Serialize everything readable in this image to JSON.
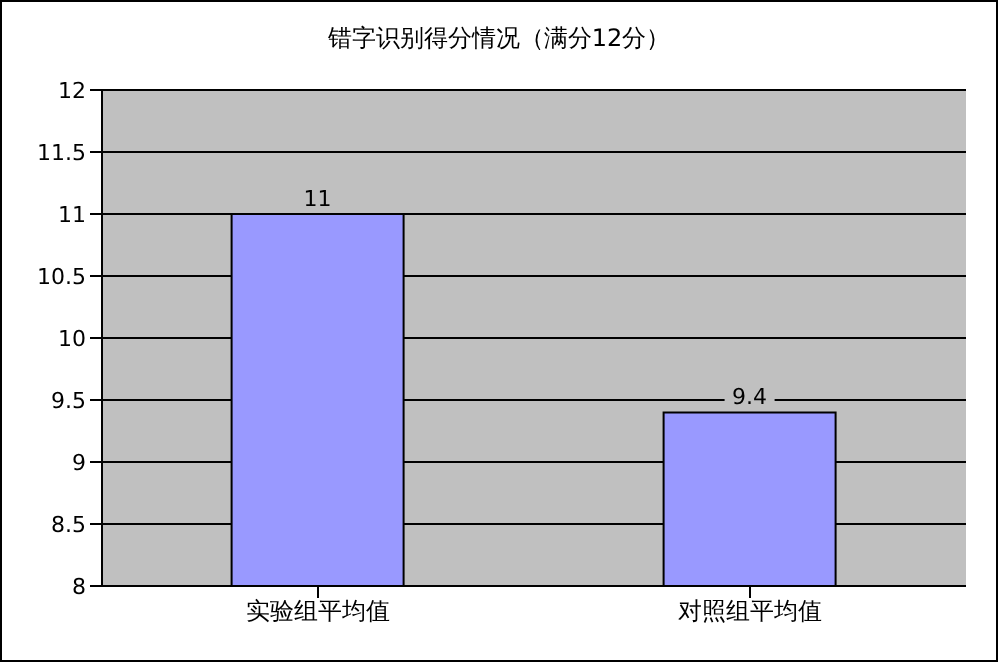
{
  "chart_data": {
    "type": "bar",
    "title": "错字识别得分情况（满分12分）",
    "categories": [
      "实验组平均值",
      "对照组平均值"
    ],
    "values": [
      11,
      9.4
    ],
    "color": "#9999ff",
    "ylim": [
      8,
      12
    ],
    "yticks": [
      8,
      8.5,
      9,
      9.5,
      10,
      10.5,
      11,
      11.5,
      12
    ],
    "grid": "y",
    "data_labels": true
  }
}
